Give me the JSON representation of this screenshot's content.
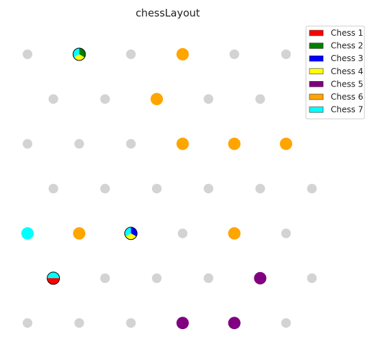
{
  "chart_data": {
    "type": "scatter",
    "title": "chessLayout",
    "xlabel": "",
    "ylabel": "",
    "grid": false,
    "legend_position": "top-right",
    "empty_color": "#d3d3d3",
    "series": [
      {
        "name": "Chess 1",
        "color": "#ff0000"
      },
      {
        "name": "Chess 2",
        "color": "#008000"
      },
      {
        "name": "Chess 3",
        "color": "#0000ff"
      },
      {
        "name": "Chess 4",
        "color": "#ffff00"
      },
      {
        "name": "Chess 5",
        "color": "#800080"
      },
      {
        "name": "Chess 6",
        "color": "#ffa500"
      },
      {
        "name": "Chess 7",
        "color": "#00ffff"
      }
    ],
    "rows": [
      {
        "row": 0,
        "stagger": false,
        "cells": [
          [],
          [
            2,
            4,
            7
          ],
          [],
          [
            6
          ],
          [],
          []
        ]
      },
      {
        "row": 1,
        "stagger": true,
        "cells": [
          [],
          [],
          [
            6
          ],
          [],
          []
        ]
      },
      {
        "row": 2,
        "stagger": false,
        "cells": [
          [],
          [],
          [],
          [
            6
          ],
          [
            6
          ],
          [
            6
          ]
        ]
      },
      {
        "row": 3,
        "stagger": true,
        "cells": [
          [],
          [],
          [],
          [],
          [],
          []
        ]
      },
      {
        "row": 4,
        "stagger": false,
        "cells": [
          [
            7
          ],
          [
            6
          ],
          [
            3,
            4,
            7
          ],
          [],
          [
            6
          ],
          []
        ]
      },
      {
        "row": 5,
        "stagger": true,
        "cells": [
          [
            1,
            7
          ],
          [],
          [],
          [],
          [
            5
          ],
          []
        ]
      },
      {
        "row": 6,
        "stagger": false,
        "cells": [
          [],
          [],
          [],
          [
            5
          ],
          [
            5
          ],
          []
        ]
      }
    ]
  }
}
